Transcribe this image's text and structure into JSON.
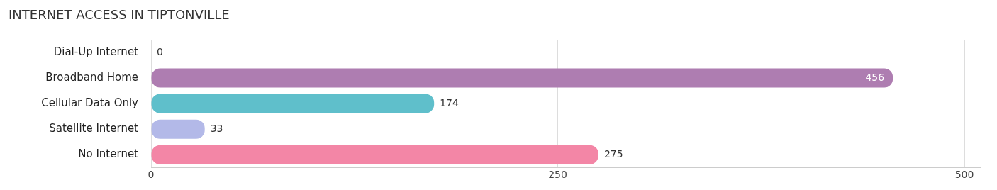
{
  "chart_data": {
    "type": "bar",
    "title": "INTERNET ACCESS IN TIPTONVILLE",
    "orientation": "horizontal",
    "categories": [
      "Dial-Up Internet",
      "Broadband Home",
      "Cellular Data Only",
      "Satellite Internet",
      "No Internet"
    ],
    "values": [
      0,
      456,
      174,
      33,
      275
    ],
    "colors": [
      "#a8c6ec",
      "#ae7db1",
      "#5fbfcb",
      "#b3b9e8",
      "#f386a6"
    ],
    "xlim": [
      0,
      510
    ],
    "xticks": [
      0,
      250,
      500
    ],
    "grid": "x",
    "data_labels": true,
    "legend": false
  }
}
